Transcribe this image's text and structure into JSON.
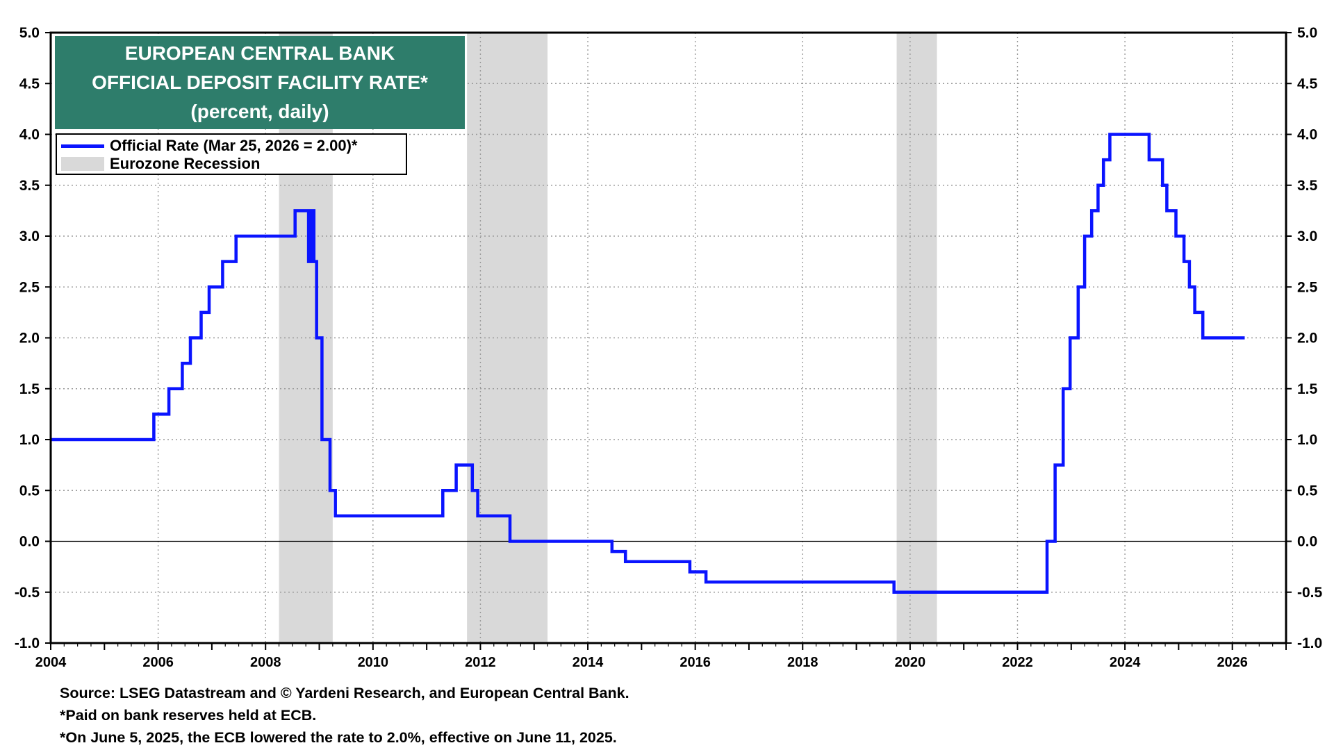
{
  "colors": {
    "series": "#0a14ff",
    "recession": "#d9d9d9",
    "title_bg": "#2e7d6b",
    "title_text": "#ffffff",
    "zero_line": "#000000",
    "grid": "#9a9a9a"
  },
  "title_lines": [
    "EUROPEAN CENTRAL BANK",
    "OFFICIAL DEPOSIT FACILITY RATE*",
    "(percent, daily)"
  ],
  "legend": {
    "series_label": "Official Rate  (Mar 25, 2026 = 2.00)*",
    "recession_label": "Eurozone Recession"
  },
  "footnotes": [
    "Source: LSEG Datastream and © Yardeni Research, and European Central Bank.",
    "*Paid on bank reserves held at ECB.",
    "*On June 5, 2025, the ECB lowered the rate to 2.0%, effective on June 11, 2025."
  ],
  "chart_data": {
    "type": "line",
    "xlim": [
      2004.0,
      2027.0
    ],
    "ylim": [
      -1.0,
      5.0
    ],
    "x_ticks": [
      2004,
      2006,
      2008,
      2010,
      2012,
      2014,
      2016,
      2018,
      2020,
      2022,
      2024,
      2026
    ],
    "y_ticks": [
      -1.0,
      -0.5,
      0.0,
      0.5,
      1.0,
      1.5,
      2.0,
      2.5,
      3.0,
      3.5,
      4.0,
      4.5,
      5.0
    ],
    "y_tick_labels": [
      "-1.0",
      "-0.5",
      "0.0",
      "0.5",
      "1.0",
      "1.5",
      "2.0",
      "2.5",
      "3.0",
      "3.5",
      "4.0",
      "4.5",
      "5.0"
    ],
    "y_axis_both_sides": true,
    "grid": true,
    "legend_position": "top-left",
    "recessions": [
      [
        2008.25,
        2009.25
      ],
      [
        2011.75,
        2013.25
      ],
      [
        2019.75,
        2020.5
      ]
    ],
    "series": [
      {
        "name": "Official Rate  (Mar 25, 2026 = 2.00)*",
        "step": true,
        "points": [
          [
            2004.0,
            1.0
          ],
          [
            2005.92,
            1.25
          ],
          [
            2006.2,
            1.5
          ],
          [
            2006.45,
            1.75
          ],
          [
            2006.6,
            2.0
          ],
          [
            2006.8,
            2.25
          ],
          [
            2006.95,
            2.5
          ],
          [
            2007.2,
            2.75
          ],
          [
            2007.45,
            3.0
          ],
          [
            2008.55,
            3.25
          ],
          [
            2008.8,
            2.75
          ],
          [
            2008.85,
            3.25
          ],
          [
            2008.9,
            2.75
          ],
          [
            2008.95,
            2.0
          ],
          [
            2009.05,
            1.0
          ],
          [
            2009.2,
            0.5
          ],
          [
            2009.3,
            0.25
          ],
          [
            2011.3,
            0.5
          ],
          [
            2011.55,
            0.75
          ],
          [
            2011.85,
            0.5
          ],
          [
            2011.95,
            0.25
          ],
          [
            2012.55,
            0.0
          ],
          [
            2014.45,
            -0.1
          ],
          [
            2014.7,
            -0.2
          ],
          [
            2015.9,
            -0.3
          ],
          [
            2016.2,
            -0.4
          ],
          [
            2019.7,
            -0.5
          ],
          [
            2022.55,
            0.0
          ],
          [
            2022.7,
            0.75
          ],
          [
            2022.85,
            1.5
          ],
          [
            2022.98,
            2.0
          ],
          [
            2023.13,
            2.5
          ],
          [
            2023.25,
            3.0
          ],
          [
            2023.38,
            3.25
          ],
          [
            2023.5,
            3.5
          ],
          [
            2023.6,
            3.75
          ],
          [
            2023.72,
            4.0
          ],
          [
            2024.45,
            3.75
          ],
          [
            2024.7,
            3.5
          ],
          [
            2024.78,
            3.25
          ],
          [
            2024.95,
            3.0
          ],
          [
            2025.1,
            2.75
          ],
          [
            2025.2,
            2.5
          ],
          [
            2025.3,
            2.25
          ],
          [
            2025.45,
            2.0
          ],
          [
            2026.23,
            2.0
          ]
        ]
      }
    ]
  }
}
